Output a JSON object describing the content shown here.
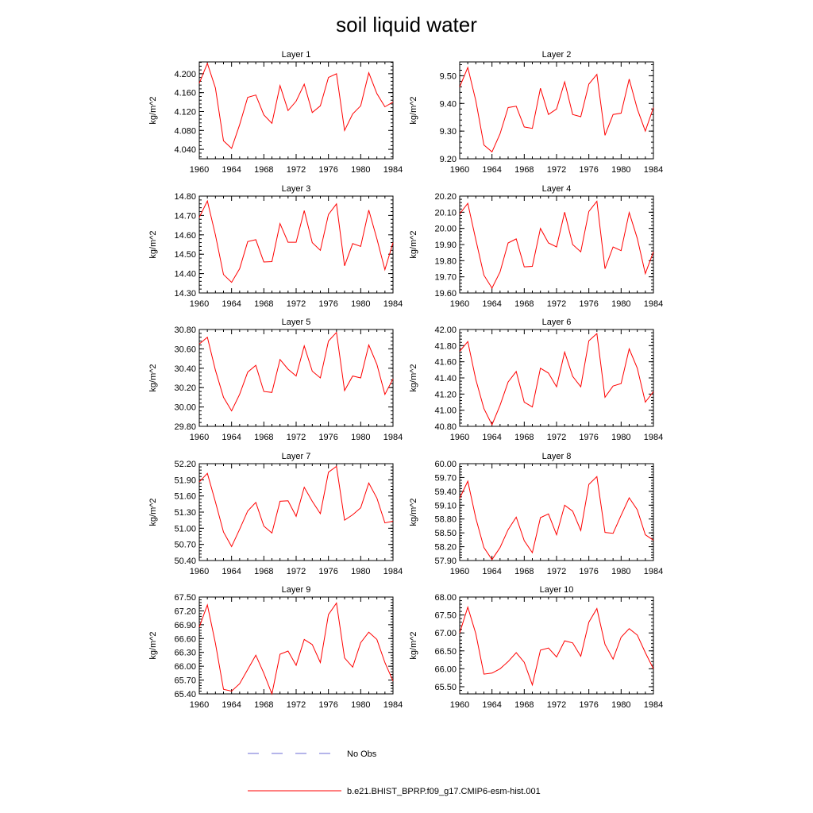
{
  "title": "soil liquid water",
  "colors": {
    "model": "#ff0000",
    "obs": "#6b6bd6",
    "axis": "#000000"
  },
  "legend": {
    "obs_label": "No Obs",
    "model_label": "b.e21.BHIST_BPRP.f09_g17.CMIP6-esm-hist.001"
  },
  "chart_data": [
    {
      "type": "line",
      "title": "Layer 1",
      "xlabel": "",
      "ylabel": "kg/m^2",
      "xlim": [
        1960,
        1984
      ],
      "ylim": [
        4.02,
        4.225
      ],
      "xticks": [
        "1960",
        "1964",
        "1968",
        "1972",
        "1976",
        "1980",
        "1984"
      ],
      "yticks": [
        "4.040",
        "4.080",
        "4.120",
        "4.160",
        "4.200"
      ],
      "x": [
        1960,
        1961,
        1962,
        1963,
        1964,
        1965,
        1966,
        1967,
        1968,
        1969,
        1970,
        1971,
        1972,
        1973,
        1974,
        1975,
        1976,
        1977,
        1978,
        1979,
        1980,
        1981,
        1982,
        1983,
        1984
      ],
      "series": [
        {
          "name": "b.e21.BHIST_BPRP.f09_g17.CMIP6-esm-hist.001",
          "values": [
            4.18,
            4.222,
            4.17,
            4.058,
            4.042,
            4.092,
            4.15,
            4.155,
            4.113,
            4.095,
            4.175,
            4.122,
            4.142,
            4.178,
            4.118,
            4.132,
            4.192,
            4.2,
            4.08,
            4.115,
            4.132,
            4.202,
            4.158,
            4.13,
            4.14
          ]
        }
      ]
    },
    {
      "type": "line",
      "title": "Layer 2",
      "xlabel": "",
      "ylabel": "kg/m^2",
      "xlim": [
        1960,
        1984
      ],
      "ylim": [
        9.2,
        9.55
      ],
      "xticks": [
        "1960",
        "1964",
        "1968",
        "1972",
        "1976",
        "1980",
        "1984"
      ],
      "yticks": [
        "9.20",
        "9.30",
        "9.40",
        "9.50"
      ],
      "x": [
        1960,
        1961,
        1962,
        1963,
        1964,
        1965,
        1966,
        1967,
        1968,
        1969,
        1970,
        1971,
        1972,
        1973,
        1974,
        1975,
        1976,
        1977,
        1978,
        1979,
        1980,
        1981,
        1982,
        1983,
        1984
      ],
      "series": [
        {
          "name": "b.e21.BHIST_BPRP.f09_g17.CMIP6-esm-hist.001",
          "values": [
            9.46,
            9.53,
            9.41,
            9.25,
            9.225,
            9.29,
            9.385,
            9.39,
            9.315,
            9.31,
            9.455,
            9.36,
            9.38,
            9.478,
            9.36,
            9.352,
            9.47,
            9.505,
            9.285,
            9.36,
            9.365,
            9.488,
            9.38,
            9.3,
            9.385
          ]
        }
      ]
    },
    {
      "type": "line",
      "title": "Layer 3",
      "xlabel": "",
      "ylabel": "kg/m^2",
      "xlim": [
        1960,
        1984
      ],
      "ylim": [
        14.3,
        14.8
      ],
      "xticks": [
        "1960",
        "1964",
        "1968",
        "1972",
        "1976",
        "1980",
        "1984"
      ],
      "yticks": [
        "14.30",
        "14.40",
        "14.50",
        "14.60",
        "14.70",
        "14.80"
      ],
      "x": [
        1960,
        1961,
        1962,
        1963,
        1964,
        1965,
        1966,
        1967,
        1968,
        1969,
        1970,
        1971,
        1972,
        1973,
        1974,
        1975,
        1976,
        1977,
        1978,
        1979,
        1980,
        1981,
        1982,
        1983,
        1984
      ],
      "series": [
        {
          "name": "b.e21.BHIST_BPRP.f09_g17.CMIP6-esm-hist.001",
          "values": [
            14.69,
            14.775,
            14.6,
            14.395,
            14.355,
            14.425,
            14.565,
            14.575,
            14.46,
            14.462,
            14.658,
            14.562,
            14.562,
            14.725,
            14.56,
            14.52,
            14.705,
            14.76,
            14.44,
            14.555,
            14.54,
            14.728,
            14.58,
            14.42,
            14.56
          ]
        }
      ]
    },
    {
      "type": "line",
      "title": "Layer 4",
      "xlabel": "",
      "ylabel": "kg/m^2",
      "xlim": [
        1960,
        1984
      ],
      "ylim": [
        19.6,
        20.2
      ],
      "xticks": [
        "1960",
        "1964",
        "1968",
        "1972",
        "1976",
        "1980",
        "1984"
      ],
      "yticks": [
        "19.60",
        "19.70",
        "19.80",
        "19.90",
        "20.00",
        "20.10",
        "20.20"
      ],
      "x": [
        1960,
        1961,
        1962,
        1963,
        1964,
        1965,
        1966,
        1967,
        1968,
        1969,
        1970,
        1971,
        1972,
        1973,
        1974,
        1975,
        1976,
        1977,
        1978,
        1979,
        1980,
        1981,
        1982,
        1983,
        1984
      ],
      "series": [
        {
          "name": "b.e21.BHIST_BPRP.f09_g17.CMIP6-esm-hist.001",
          "values": [
            20.09,
            20.155,
            19.93,
            19.71,
            19.63,
            19.73,
            19.91,
            19.935,
            19.762,
            19.765,
            20.0,
            19.91,
            19.885,
            20.1,
            19.9,
            19.855,
            20.105,
            20.168,
            19.75,
            19.885,
            19.862,
            20.098,
            19.938,
            19.72,
            19.855
          ]
        }
      ]
    },
    {
      "type": "line",
      "title": "Layer 5",
      "xlabel": "",
      "ylabel": "kg/m^2",
      "xlim": [
        1960,
        1984
      ],
      "ylim": [
        29.8,
        30.8
      ],
      "xticks": [
        "1960",
        "1964",
        "1968",
        "1972",
        "1976",
        "1980",
        "1984"
      ],
      "yticks": [
        "29.80",
        "30.00",
        "30.20",
        "30.40",
        "30.60",
        "30.80"
      ],
      "x": [
        1960,
        1961,
        1962,
        1963,
        1964,
        1965,
        1966,
        1967,
        1968,
        1969,
        1970,
        1971,
        1972,
        1973,
        1974,
        1975,
        1976,
        1977,
        1978,
        1979,
        1980,
        1981,
        1982,
        1983,
        1984
      ],
      "series": [
        {
          "name": "b.e21.BHIST_BPRP.f09_g17.CMIP6-esm-hist.001",
          "values": [
            30.65,
            30.72,
            30.38,
            30.1,
            29.96,
            30.13,
            30.36,
            30.43,
            30.16,
            30.15,
            30.49,
            30.39,
            30.32,
            30.63,
            30.37,
            30.3,
            30.68,
            30.77,
            30.17,
            30.32,
            30.3,
            30.64,
            30.44,
            30.13,
            30.29
          ]
        }
      ]
    },
    {
      "type": "line",
      "title": "Layer 6",
      "xlabel": "",
      "ylabel": "kg/m^2",
      "xlim": [
        1960,
        1984
      ],
      "ylim": [
        40.8,
        42.0
      ],
      "xticks": [
        "1960",
        "1964",
        "1968",
        "1972",
        "1976",
        "1980",
        "1984"
      ],
      "yticks": [
        "40.80",
        "41.00",
        "41.20",
        "41.40",
        "41.60",
        "41.80",
        "42.00"
      ],
      "x": [
        1960,
        1961,
        1962,
        1963,
        1964,
        1965,
        1966,
        1967,
        1968,
        1969,
        1970,
        1971,
        1972,
        1973,
        1974,
        1975,
        1976,
        1977,
        1978,
        1979,
        1980,
        1981,
        1982,
        1983,
        1984
      ],
      "series": [
        {
          "name": "b.e21.BHIST_BPRP.f09_g17.CMIP6-esm-hist.001",
          "values": [
            41.73,
            41.85,
            41.38,
            41.02,
            40.82,
            41.06,
            41.35,
            41.48,
            41.1,
            41.04,
            41.52,
            41.46,
            41.29,
            41.72,
            41.42,
            41.29,
            41.86,
            41.95,
            41.16,
            41.3,
            41.33,
            41.76,
            41.52,
            41.1,
            41.23
          ]
        }
      ]
    },
    {
      "type": "line",
      "title": "Layer 7",
      "xlabel": "",
      "ylabel": "kg/m^2",
      "xlim": [
        1960,
        1984
      ],
      "ylim": [
        50.4,
        52.2
      ],
      "xticks": [
        "1960",
        "1964",
        "1968",
        "1972",
        "1976",
        "1980",
        "1984"
      ],
      "yticks": [
        "50.40",
        "50.70",
        "51.00",
        "51.30",
        "51.60",
        "51.90",
        "52.20"
      ],
      "x": [
        1960,
        1961,
        1962,
        1963,
        1964,
        1965,
        1966,
        1967,
        1968,
        1969,
        1970,
        1971,
        1972,
        1973,
        1974,
        1975,
        1976,
        1977,
        1978,
        1979,
        1980,
        1981,
        1982,
        1983,
        1984
      ],
      "series": [
        {
          "name": "b.e21.BHIST_BPRP.f09_g17.CMIP6-esm-hist.001",
          "values": [
            51.86,
            52.02,
            51.49,
            50.93,
            50.66,
            50.98,
            51.32,
            51.48,
            51.04,
            50.91,
            51.5,
            51.51,
            51.22,
            51.76,
            51.5,
            51.27,
            52.04,
            52.15,
            51.15,
            51.25,
            51.38,
            51.84,
            51.56,
            51.1,
            51.13
          ]
        }
      ]
    },
    {
      "type": "line",
      "title": "Layer 8",
      "xlabel": "",
      "ylabel": "kg/m^2",
      "xlim": [
        1960,
        1984
      ],
      "ylim": [
        57.9,
        60.0
      ],
      "xticks": [
        "1960",
        "1964",
        "1968",
        "1972",
        "1976",
        "1980",
        "1984"
      ],
      "yticks": [
        "57.90",
        "58.20",
        "58.50",
        "58.80",
        "59.10",
        "59.40",
        "59.70",
        "60.00"
      ],
      "x": [
        1960,
        1961,
        1962,
        1963,
        1964,
        1965,
        1966,
        1967,
        1968,
        1969,
        1970,
        1971,
        1972,
        1973,
        1974,
        1975,
        1976,
        1977,
        1978,
        1979,
        1980,
        1981,
        1982,
        1983,
        1984
      ],
      "series": [
        {
          "name": "b.e21.BHIST_BPRP.f09_g17.CMIP6-esm-hist.001",
          "values": [
            59.25,
            59.62,
            58.82,
            58.18,
            57.92,
            58.18,
            58.57,
            58.84,
            58.33,
            58.07,
            58.83,
            58.91,
            58.46,
            59.1,
            58.97,
            58.55,
            59.55,
            59.72,
            58.51,
            58.49,
            58.88,
            59.26,
            59.0,
            58.46,
            58.34
          ]
        }
      ]
    },
    {
      "type": "line",
      "title": "Layer 9",
      "xlabel": "",
      "ylabel": "kg/m^2",
      "xlim": [
        1960,
        1984
      ],
      "ylim": [
        65.4,
        67.5
      ],
      "xticks": [
        "1960",
        "1964",
        "1968",
        "1972",
        "1976",
        "1980",
        "1984"
      ],
      "yticks": [
        "65.40",
        "65.70",
        "66.00",
        "66.30",
        "66.60",
        "66.90",
        "67.20",
        "67.50"
      ],
      "x": [
        1960,
        1961,
        1962,
        1963,
        1964,
        1965,
        1966,
        1967,
        1968,
        1969,
        1970,
        1971,
        1972,
        1973,
        1974,
        1975,
        1976,
        1977,
        1978,
        1979,
        1980,
        1981,
        1982,
        1983,
        1984
      ],
      "series": [
        {
          "name": "b.e21.BHIST_BPRP.f09_g17.CMIP6-esm-hist.001",
          "values": [
            66.85,
            67.33,
            66.5,
            65.5,
            65.46,
            65.62,
            65.93,
            66.24,
            65.85,
            65.4,
            66.26,
            66.33,
            66.02,
            66.58,
            66.47,
            66.08,
            67.12,
            67.37,
            66.18,
            65.98,
            66.51,
            66.74,
            66.58,
            66.08,
            65.68
          ]
        }
      ]
    },
    {
      "type": "line",
      "title": "Layer 10",
      "xlabel": "",
      "ylabel": "kg/m^2",
      "xlim": [
        1960,
        1984
      ],
      "ylim": [
        65.3,
        68.0
      ],
      "xticks": [
        "1960",
        "1964",
        "1968",
        "1972",
        "1976",
        "1980",
        "1984"
      ],
      "yticks": [
        "65.50",
        "66.00",
        "66.50",
        "67.00",
        "67.50",
        "68.00"
      ],
      "x": [
        1960,
        1961,
        1962,
        1963,
        1964,
        1965,
        1966,
        1967,
        1968,
        1969,
        1970,
        1971,
        1972,
        1973,
        1974,
        1975,
        1976,
        1977,
        1978,
        1979,
        1980,
        1981,
        1982,
        1983,
        1984
      ],
      "series": [
        {
          "name": "b.e21.BHIST_BPRP.f09_g17.CMIP6-esm-hist.001",
          "values": [
            67.0,
            67.72,
            66.98,
            65.85,
            65.88,
            66.0,
            66.2,
            66.45,
            66.18,
            65.55,
            66.52,
            66.58,
            66.33,
            66.78,
            66.72,
            66.35,
            67.3,
            67.68,
            66.68,
            66.27,
            66.88,
            67.12,
            66.94,
            66.45,
            66.0
          ]
        }
      ]
    }
  ]
}
